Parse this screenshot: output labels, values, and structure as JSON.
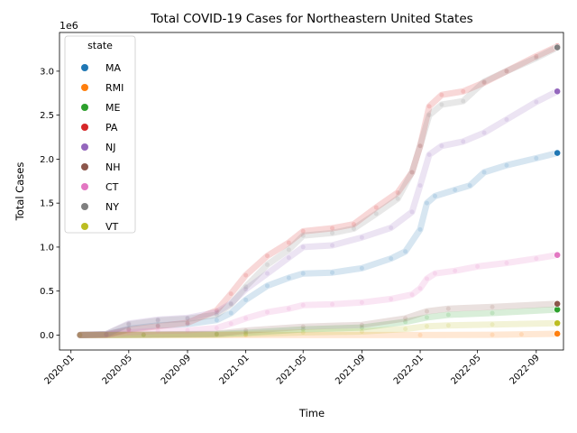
{
  "chart_data": {
    "type": "scatter",
    "title": "Total COVID-19 Cases for Northeastern United States",
    "xlabel": "Time",
    "ylabel": "Total Cases",
    "y_offset_label": "1e6",
    "y_scale": 1000000,
    "xlim": [
      "2019-12-08",
      "2022-10-28"
    ],
    "ylim": [
      -170000,
      3440000
    ],
    "x_ticks": [
      "2020-01-01",
      "2020-05-01",
      "2020-09-01",
      "2021-01-01",
      "2021-05-01",
      "2021-09-01",
      "2022-01-01",
      "2022-05-01",
      "2022-09-01"
    ],
    "x_tick_labels": [
      "2020-01",
      "2020-05",
      "2020-09",
      "2021-01",
      "2021-05",
      "2021-09",
      "2022-01",
      "2022-05",
      "2022-09"
    ],
    "y_ticks": [
      0,
      500000,
      1000000,
      1500000,
      2000000,
      2500000,
      3000000
    ],
    "y_tick_labels": [
      "0.0",
      "0.5",
      "1.0",
      "1.5",
      "2.0",
      "2.5",
      "3.0"
    ],
    "grid": false,
    "legend": {
      "title": "state",
      "placement": "top-left"
    },
    "series": [
      {
        "name": "MA",
        "color": "#1f77b4",
        "points": [
          [
            "2020-01-20",
            0
          ],
          [
            "2020-03-15",
            5000
          ],
          [
            "2020-05-01",
            70000
          ],
          [
            "2020-07-01",
            110000
          ],
          [
            "2020-09-01",
            125000
          ],
          [
            "2020-11-01",
            170000
          ],
          [
            "2020-12-01",
            250000
          ],
          [
            "2021-01-01",
            400000
          ],
          [
            "2021-02-15",
            560000
          ],
          [
            "2021-04-01",
            650000
          ],
          [
            "2021-05-01",
            700000
          ],
          [
            "2021-07-01",
            710000
          ],
          [
            "2021-09-01",
            760000
          ],
          [
            "2021-11-01",
            870000
          ],
          [
            "2021-12-01",
            950000
          ],
          [
            "2022-01-01",
            1200000
          ],
          [
            "2022-01-15",
            1500000
          ],
          [
            "2022-02-01",
            1580000
          ],
          [
            "2022-03-15",
            1650000
          ],
          [
            "2022-04-15",
            1700000
          ],
          [
            "2022-05-15",
            1850000
          ],
          [
            "2022-07-01",
            1930000
          ],
          [
            "2022-09-01",
            2010000
          ],
          [
            "2022-10-15",
            2070000
          ]
        ]
      },
      {
        "name": "RMI",
        "color": "#ff7f0e",
        "points": [
          [
            "2020-01-20",
            0
          ],
          [
            "2021-01-01",
            0
          ],
          [
            "2022-01-01",
            0
          ],
          [
            "2022-06-01",
            3000
          ],
          [
            "2022-08-01",
            8000
          ],
          [
            "2022-10-15",
            15000
          ]
        ]
      },
      {
        "name": "ME",
        "color": "#2ca02c",
        "points": [
          [
            "2020-01-20",
            0
          ],
          [
            "2020-06-01",
            3000
          ],
          [
            "2020-11-01",
            10000
          ],
          [
            "2021-01-01",
            25000
          ],
          [
            "2021-05-01",
            65000
          ],
          [
            "2021-09-01",
            85000
          ],
          [
            "2021-12-01",
            150000
          ],
          [
            "2022-01-15",
            200000
          ],
          [
            "2022-03-01",
            230000
          ],
          [
            "2022-06-01",
            250000
          ],
          [
            "2022-10-15",
            290000
          ]
        ]
      },
      {
        "name": "PA",
        "color": "#d62728",
        "points": [
          [
            "2020-01-20",
            0
          ],
          [
            "2020-03-15",
            5000
          ],
          [
            "2020-05-01",
            60000
          ],
          [
            "2020-07-01",
            100000
          ],
          [
            "2020-09-01",
            140000
          ],
          [
            "2020-11-01",
            280000
          ],
          [
            "2020-12-01",
            470000
          ],
          [
            "2021-01-01",
            680000
          ],
          [
            "2021-02-15",
            900000
          ],
          [
            "2021-04-01",
            1050000
          ],
          [
            "2021-05-01",
            1180000
          ],
          [
            "2021-07-01",
            1215000
          ],
          [
            "2021-08-15",
            1260000
          ],
          [
            "2021-10-01",
            1450000
          ],
          [
            "2021-11-15",
            1620000
          ],
          [
            "2021-12-15",
            1850000
          ],
          [
            "2022-01-01",
            2150000
          ],
          [
            "2022-01-20",
            2600000
          ],
          [
            "2022-02-15",
            2730000
          ],
          [
            "2022-04-01",
            2770000
          ],
          [
            "2022-05-15",
            2870000
          ],
          [
            "2022-07-01",
            3000000
          ],
          [
            "2022-09-01",
            3170000
          ],
          [
            "2022-10-15",
            3280000
          ]
        ]
      },
      {
        "name": "NJ",
        "color": "#9467bd",
        "points": [
          [
            "2020-01-20",
            0
          ],
          [
            "2020-03-15",
            10000
          ],
          [
            "2020-05-01",
            130000
          ],
          [
            "2020-07-01",
            175000
          ],
          [
            "2020-09-01",
            195000
          ],
          [
            "2020-11-01",
            260000
          ],
          [
            "2020-12-01",
            360000
          ],
          [
            "2021-01-01",
            520000
          ],
          [
            "2021-02-15",
            700000
          ],
          [
            "2021-04-01",
            880000
          ],
          [
            "2021-05-01",
            1000000
          ],
          [
            "2021-07-01",
            1020000
          ],
          [
            "2021-09-01",
            1110000
          ],
          [
            "2021-11-01",
            1220000
          ],
          [
            "2021-12-15",
            1400000
          ],
          [
            "2022-01-01",
            1700000
          ],
          [
            "2022-01-20",
            2050000
          ],
          [
            "2022-02-15",
            2150000
          ],
          [
            "2022-04-01",
            2200000
          ],
          [
            "2022-05-15",
            2300000
          ],
          [
            "2022-07-01",
            2450000
          ],
          [
            "2022-09-01",
            2650000
          ],
          [
            "2022-10-15",
            2770000
          ]
        ]
      },
      {
        "name": "NH",
        "color": "#8c564b",
        "points": [
          [
            "2020-01-20",
            0
          ],
          [
            "2020-06-01",
            5000
          ],
          [
            "2020-11-01",
            15000
          ],
          [
            "2021-01-01",
            50000
          ],
          [
            "2021-05-01",
            95000
          ],
          [
            "2021-09-01",
            115000
          ],
          [
            "2021-12-01",
            190000
          ],
          [
            "2022-01-15",
            270000
          ],
          [
            "2022-03-01",
            300000
          ],
          [
            "2022-06-01",
            320000
          ],
          [
            "2022-10-15",
            355000
          ]
        ]
      },
      {
        "name": "CT",
        "color": "#e377c2",
        "points": [
          [
            "2020-01-20",
            0
          ],
          [
            "2020-03-15",
            2000
          ],
          [
            "2020-05-01",
            30000
          ],
          [
            "2020-07-01",
            47000
          ],
          [
            "2020-09-01",
            53000
          ],
          [
            "2020-11-01",
            80000
          ],
          [
            "2020-12-01",
            130000
          ],
          [
            "2021-01-01",
            190000
          ],
          [
            "2021-02-15",
            260000
          ],
          [
            "2021-04-01",
            300000
          ],
          [
            "2021-05-01",
            340000
          ],
          [
            "2021-07-01",
            350000
          ],
          [
            "2021-09-01",
            370000
          ],
          [
            "2021-11-01",
            410000
          ],
          [
            "2021-12-15",
            460000
          ],
          [
            "2022-01-01",
            530000
          ],
          [
            "2022-01-15",
            640000
          ],
          [
            "2022-02-01",
            700000
          ],
          [
            "2022-03-15",
            730000
          ],
          [
            "2022-05-01",
            780000
          ],
          [
            "2022-07-01",
            820000
          ],
          [
            "2022-09-01",
            870000
          ],
          [
            "2022-10-15",
            910000
          ]
        ]
      },
      {
        "name": "NY",
        "color": "#7f7f7f",
        "points": [
          [
            "2020-01-20",
            0
          ],
          [
            "2020-03-15",
            10000
          ],
          [
            "2020-05-01",
            120000
          ],
          [
            "2020-07-01",
            165000
          ],
          [
            "2020-09-01",
            185000
          ],
          [
            "2020-11-01",
            230000
          ],
          [
            "2020-12-01",
            350000
          ],
          [
            "2021-01-01",
            550000
          ],
          [
            "2021-02-15",
            800000
          ],
          [
            "2021-04-01",
            970000
          ],
          [
            "2021-05-01",
            1130000
          ],
          [
            "2021-07-01",
            1160000
          ],
          [
            "2021-08-15",
            1210000
          ],
          [
            "2021-10-01",
            1380000
          ],
          [
            "2021-11-15",
            1550000
          ],
          [
            "2021-12-15",
            1850000
          ],
          [
            "2022-01-01",
            2150000
          ],
          [
            "2022-01-20",
            2500000
          ],
          [
            "2022-02-15",
            2620000
          ],
          [
            "2022-04-01",
            2660000
          ],
          [
            "2022-05-15",
            2880000
          ],
          [
            "2022-07-01",
            3000000
          ],
          [
            "2022-09-01",
            3150000
          ],
          [
            "2022-10-15",
            3270000
          ]
        ]
      },
      {
        "name": "VT",
        "color": "#bcbd22",
        "points": [
          [
            "2020-01-20",
            0
          ],
          [
            "2020-06-01",
            1000
          ],
          [
            "2020-11-01",
            3000
          ],
          [
            "2021-01-01",
            10000
          ],
          [
            "2021-05-01",
            30000
          ],
          [
            "2021-09-01",
            40000
          ],
          [
            "2021-12-01",
            70000
          ],
          [
            "2022-01-15",
            100000
          ],
          [
            "2022-03-01",
            110000
          ],
          [
            "2022-06-01",
            120000
          ],
          [
            "2022-10-15",
            135000
          ]
        ]
      }
    ]
  }
}
